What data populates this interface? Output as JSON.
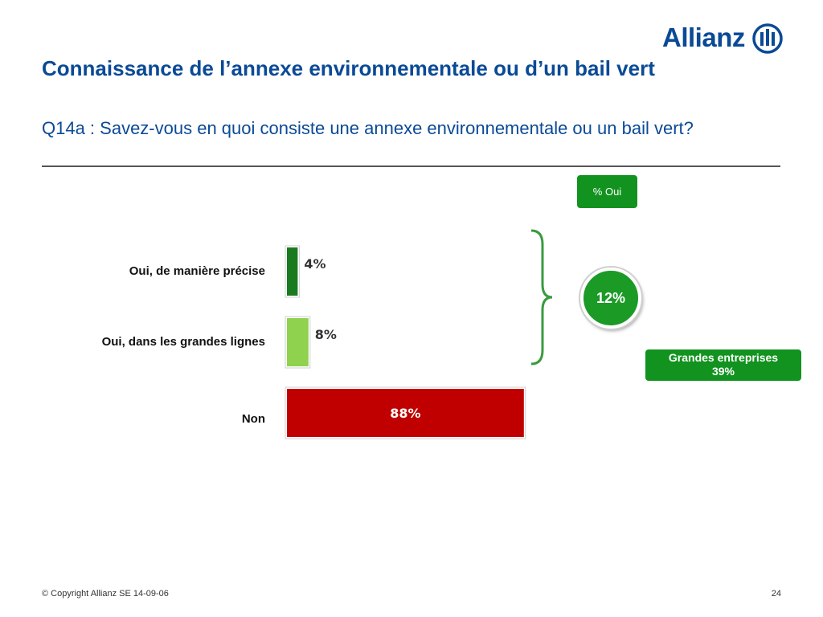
{
  "brand": {
    "name": "Allianz",
    "color": "#0a4a96"
  },
  "slide": {
    "title": "Connaissance de l’annexe environnementale ou d’un bail vert",
    "question": "Q14a : Savez-vous en quoi consiste une annexe environnementale ou un bail vert?"
  },
  "chart_data": {
    "type": "bar",
    "orientation": "horizontal",
    "categories": [
      "Oui, de manière précise",
      "Oui, dans les grandes lignes",
      "Non"
    ],
    "values": [
      4,
      8,
      88
    ],
    "value_labels": [
      "4%",
      "8%",
      "88%"
    ],
    "colors": [
      "#1a7a1f",
      "#8fd24e",
      "#c00000"
    ],
    "xlim": [
      0,
      100
    ],
    "grid": false
  },
  "callouts": {
    "oui_header": "% Oui",
    "oui_total": "12%",
    "grandes_entreprises_label": "Grandes entreprises",
    "grandes_entreprises_value": "39%",
    "accent_color": "#12931f"
  },
  "footer": {
    "copyright": "© Copyright Allianz SE 14-09-06",
    "page_number": "24"
  }
}
